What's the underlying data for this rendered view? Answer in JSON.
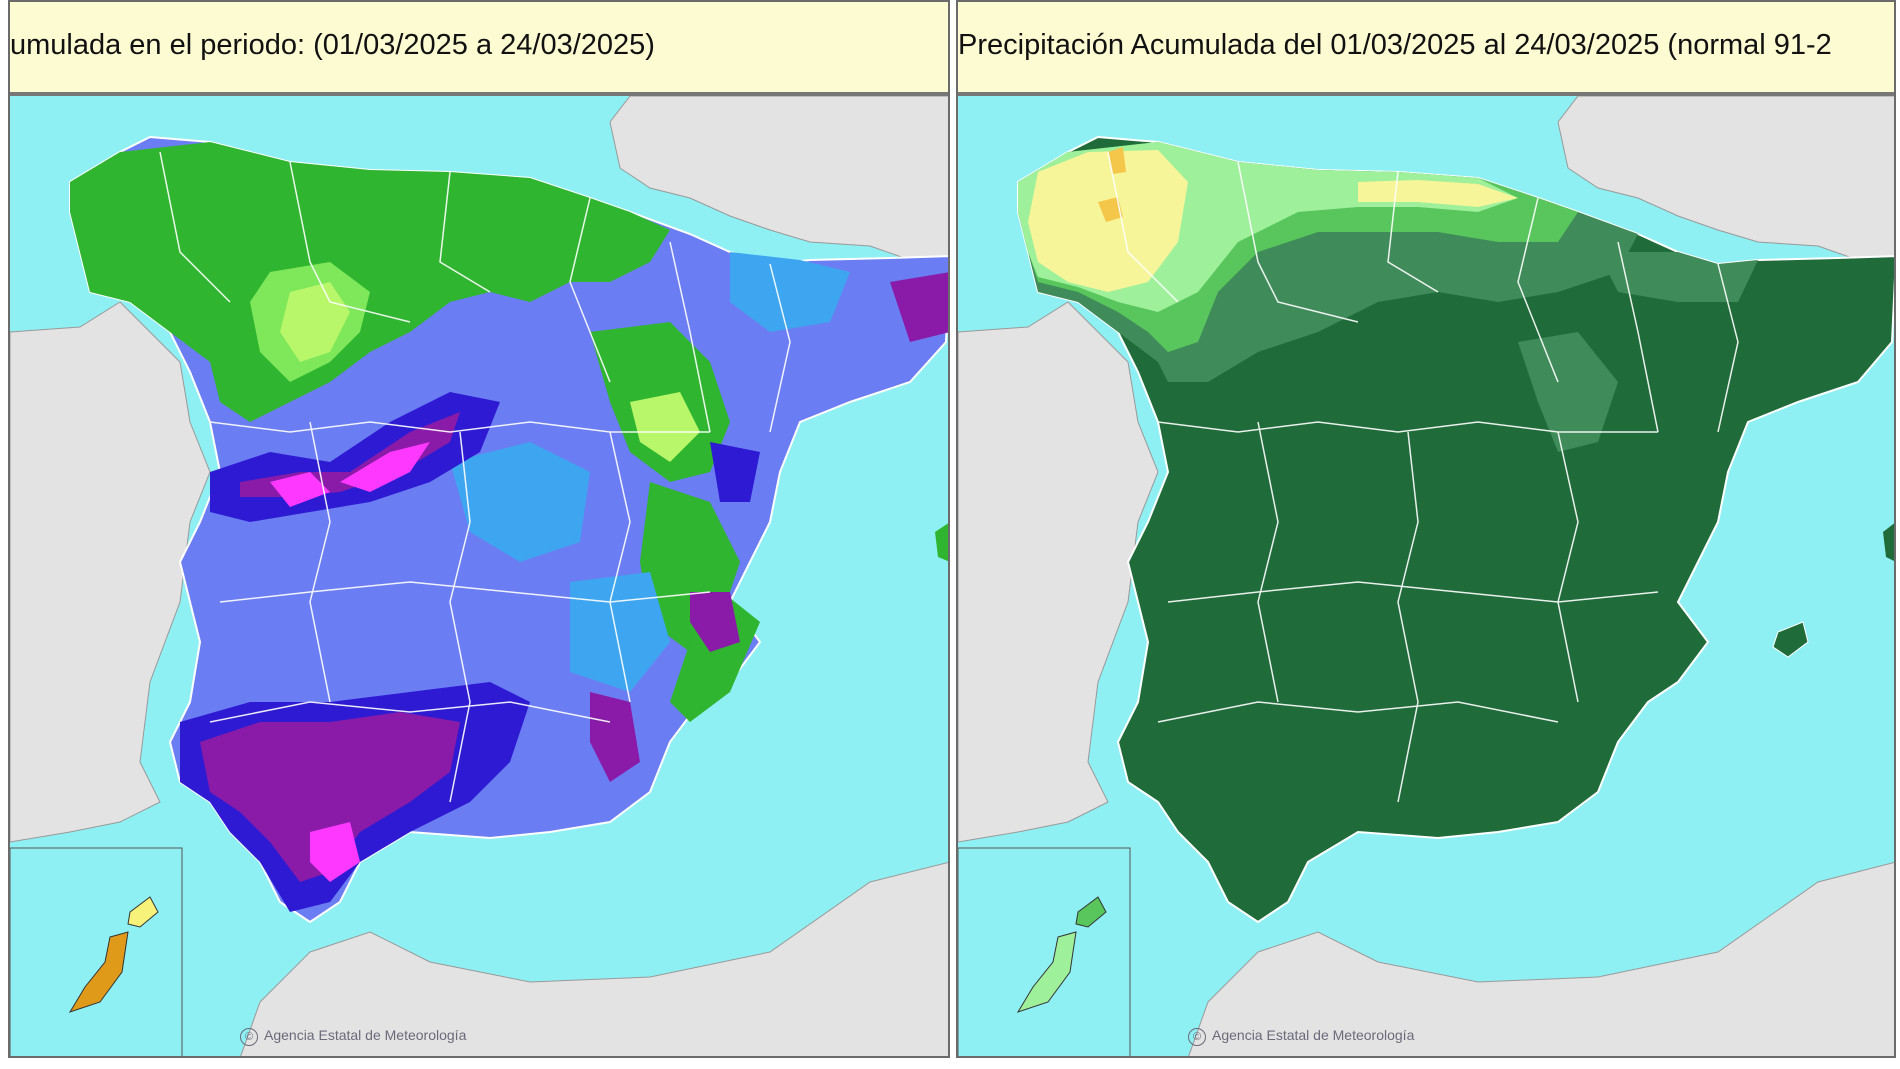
{
  "left_panel": {
    "title": "umulada en el periodo:  (01/03/2025 a 24/03/2025)",
    "credit": "Agencia Estatal de Meteorología"
  },
  "right_panel": {
    "title": "Precipitación Acumulada  del 01/03/2025 al 24/03/2025  (normal 91-2",
    "credit": "Agencia Estatal de Meteorología"
  },
  "colors": {
    "sea": "#8ff0f4",
    "land_foreign": "#e3e3e3",
    "title_bg": "#fdfbd1",
    "left_palette": [
      "#2fb52f",
      "#7ee85a",
      "#b8f76a",
      "#3ea6f0",
      "#6b7df2",
      "#2d1ad2",
      "#8a1ba8",
      "#ff38ff",
      "#e09a1a",
      "#f7f27a"
    ],
    "right_palette": [
      "#1f6b3a",
      "#3f8c5a",
      "#58c65c",
      "#9ef09a",
      "#f7f59a",
      "#f4c64a"
    ]
  }
}
